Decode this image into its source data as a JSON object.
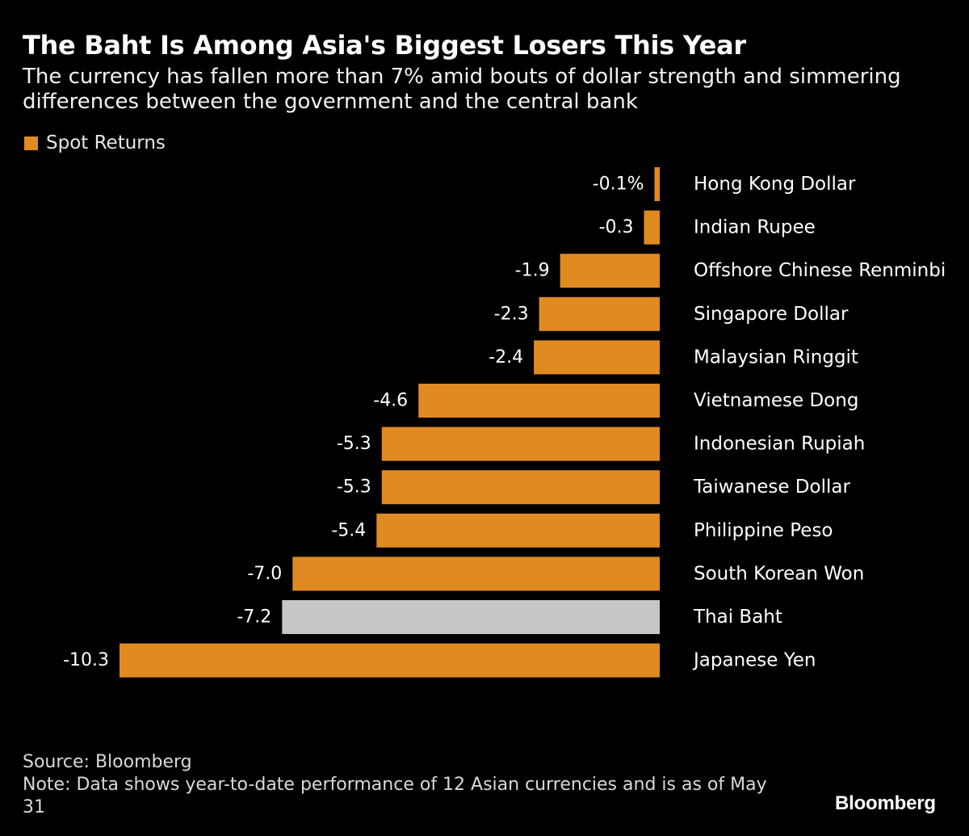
{
  "title": "The Baht Is Among Asia's Biggest Losers This Year",
  "subtitle": "The currency has fallen more than 7% amid bouts of dollar strength and simmering differences between the government and the central bank",
  "legend": {
    "label": "Spot Returns",
    "color": "#e08a22"
  },
  "chart_data": {
    "type": "bar",
    "orientation": "horizontal",
    "categories": [
      "Hong Kong Dollar",
      "Indian Rupee",
      "Offshore Chinese Renminbi",
      "Singapore Dollar",
      "Malaysian Ringgit",
      "Vietnamese Dong",
      "Indonesian Rupiah",
      "Taiwanese Dollar",
      "Philippine Peso",
      "South Korean Won",
      "Thai Baht",
      "Japanese Yen"
    ],
    "series": [
      {
        "name": "Spot Returns",
        "values": [
          -0.1,
          -0.3,
          -1.9,
          -2.3,
          -2.4,
          -4.6,
          -5.3,
          -5.3,
          -5.4,
          -7.0,
          -7.2,
          -10.3
        ]
      }
    ],
    "value_labels": [
      "-0.1%",
      "-0.3",
      "-1.9",
      "-2.3",
      "-2.4",
      "-4.6",
      "-5.3",
      "-5.3",
      "-5.4",
      "-7.0",
      "-7.2",
      "-10.3"
    ],
    "highlight_category": "Thai Baht",
    "colors": {
      "bar": "#e08a22",
      "highlight": "#c6c6c6",
      "background": "#000000"
    },
    "xlim": [
      -10.3,
      0
    ],
    "grid": false,
    "legend_position": "top-left"
  },
  "source": "Source: Bloomberg",
  "note": "Note: Data shows year-to-date performance of 12 Asian currencies and is as of May 31",
  "brand": "Bloomberg"
}
